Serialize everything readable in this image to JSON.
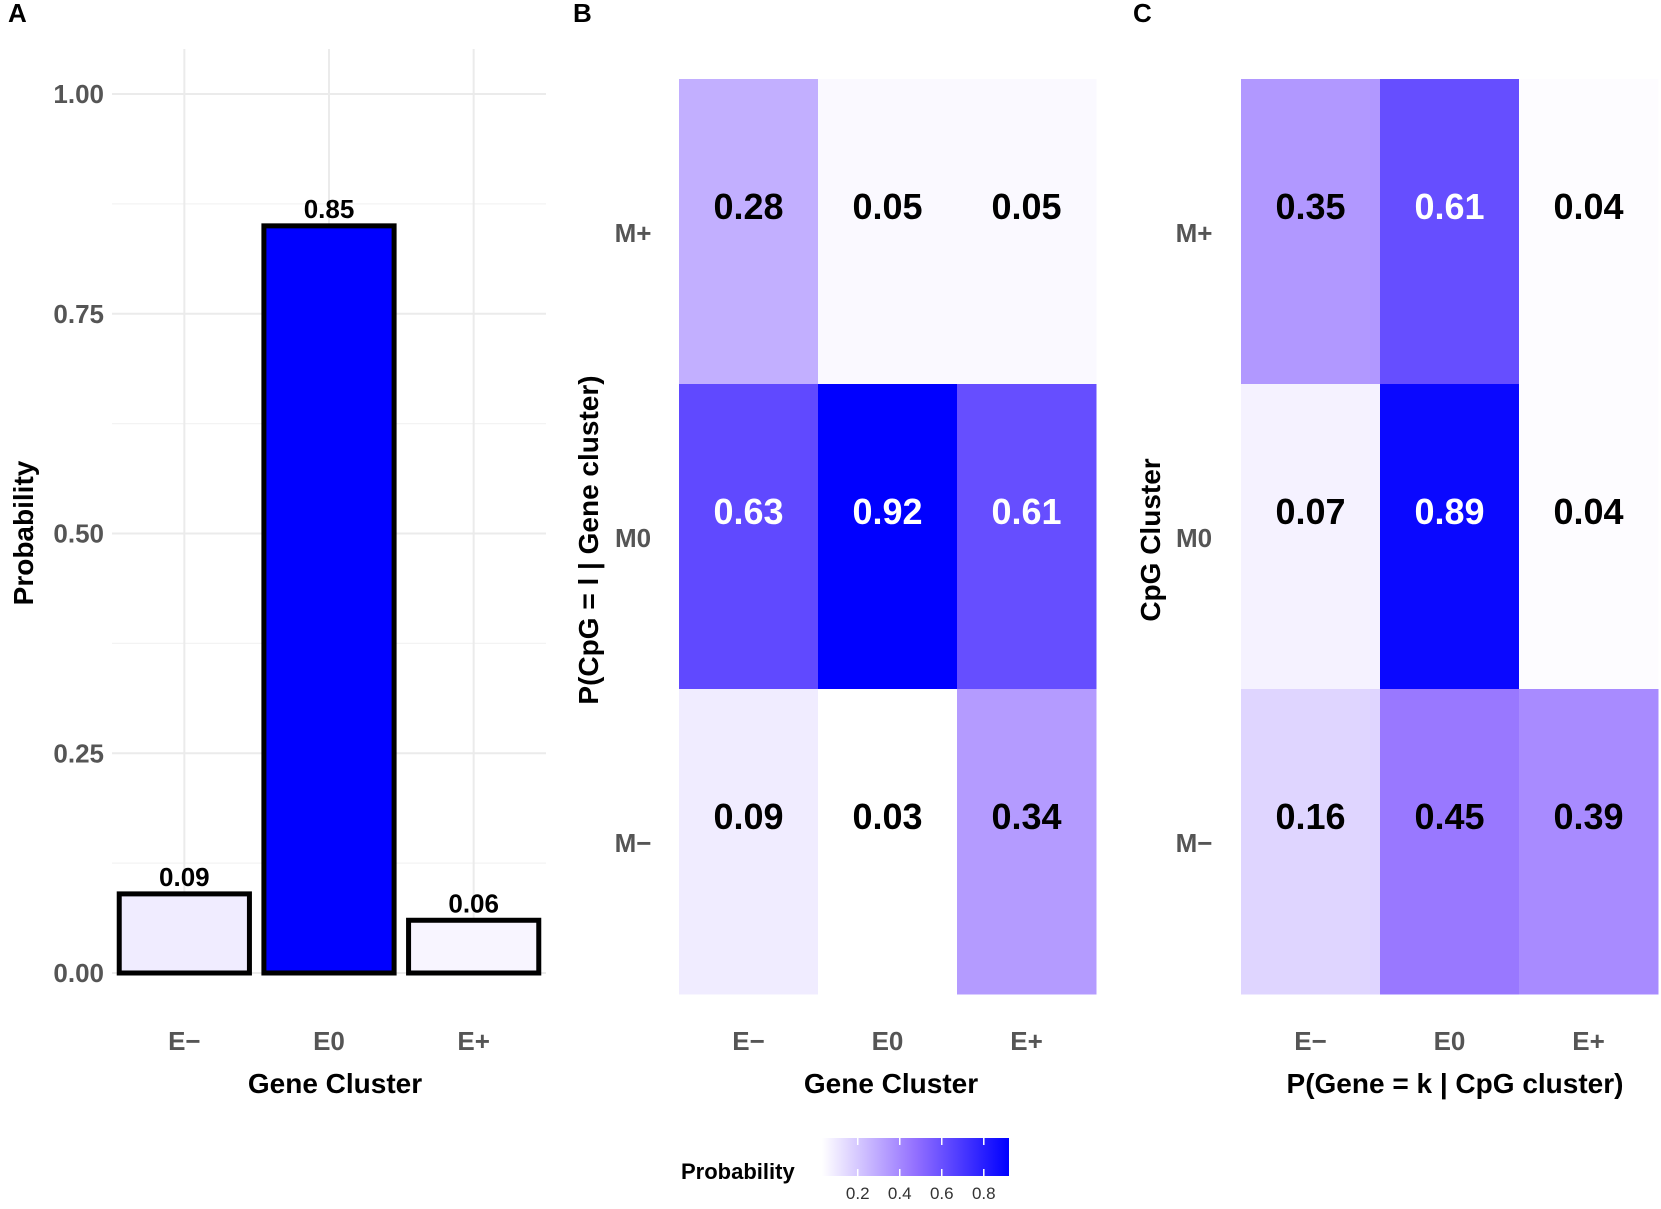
{
  "chart_data": [
    {
      "panel": "A",
      "type": "bar",
      "categories": [
        "E−",
        "E0",
        "E+"
      ],
      "values": [
        0.09,
        0.85,
        0.06
      ],
      "value_labels": [
        "0.09",
        "0.85",
        "0.06"
      ],
      "xlabel": "Gene Cluster",
      "ylabel": "Probability",
      "ylim": [
        0,
        1.0
      ],
      "yticks": [
        0.0,
        0.25,
        0.5,
        0.75,
        1.0
      ],
      "ytick_labels": [
        "0.00",
        "0.25",
        "0.50",
        "0.75",
        "1.00"
      ],
      "grid": true
    },
    {
      "panel": "B",
      "type": "heatmap",
      "x_categories": [
        "E−",
        "E0",
        "E+"
      ],
      "y_categories": [
        "M+",
        "M0",
        "M−"
      ],
      "values": [
        [
          0.28,
          0.05,
          0.05
        ],
        [
          0.63,
          0.92,
          0.61
        ],
        [
          0.09,
          0.03,
          0.34
        ]
      ],
      "value_labels": [
        [
          "0.28",
          "0.05",
          "0.05"
        ],
        [
          "0.63",
          "0.92",
          "0.61"
        ],
        [
          "0.09",
          "0.03",
          "0.34"
        ]
      ],
      "xlabel": "Gene Cluster",
      "ylabel": "P(CpG = l | Gene cluster)"
    },
    {
      "panel": "C",
      "type": "heatmap",
      "x_categories": [
        "E−",
        "E0",
        "E+"
      ],
      "y_categories": [
        "M+",
        "M0",
        "M−"
      ],
      "values": [
        [
          0.35,
          0.61,
          0.04
        ],
        [
          0.07,
          0.89,
          0.04
        ],
        [
          0.16,
          0.45,
          0.39
        ]
      ],
      "value_labels": [
        [
          "0.35",
          "0.61",
          "0.04"
        ],
        [
          "0.07",
          "0.89",
          "0.04"
        ],
        [
          "0.16",
          "0.45",
          "0.39"
        ]
      ],
      "xlabel": "P(Gene = k | CpG cluster)",
      "ylabel": "CpG Cluster"
    }
  ],
  "legend": {
    "title": "Probability",
    "ticks": [
      0.2,
      0.4,
      0.6,
      0.8
    ],
    "tick_labels": [
      "0.2",
      "0.4",
      "0.6",
      "0.8"
    ],
    "range": [
      0.03,
      0.92
    ],
    "color_low": "#ffffff",
    "color_mid": "#9370ff",
    "color_high": "#0000ff"
  },
  "colors": {
    "bar_fill_low": "#ffffff",
    "bar_fill_high": "#0000ff",
    "bar_stroke": "#000000",
    "light_text": "#ffffff",
    "dark_text": "#000000"
  }
}
